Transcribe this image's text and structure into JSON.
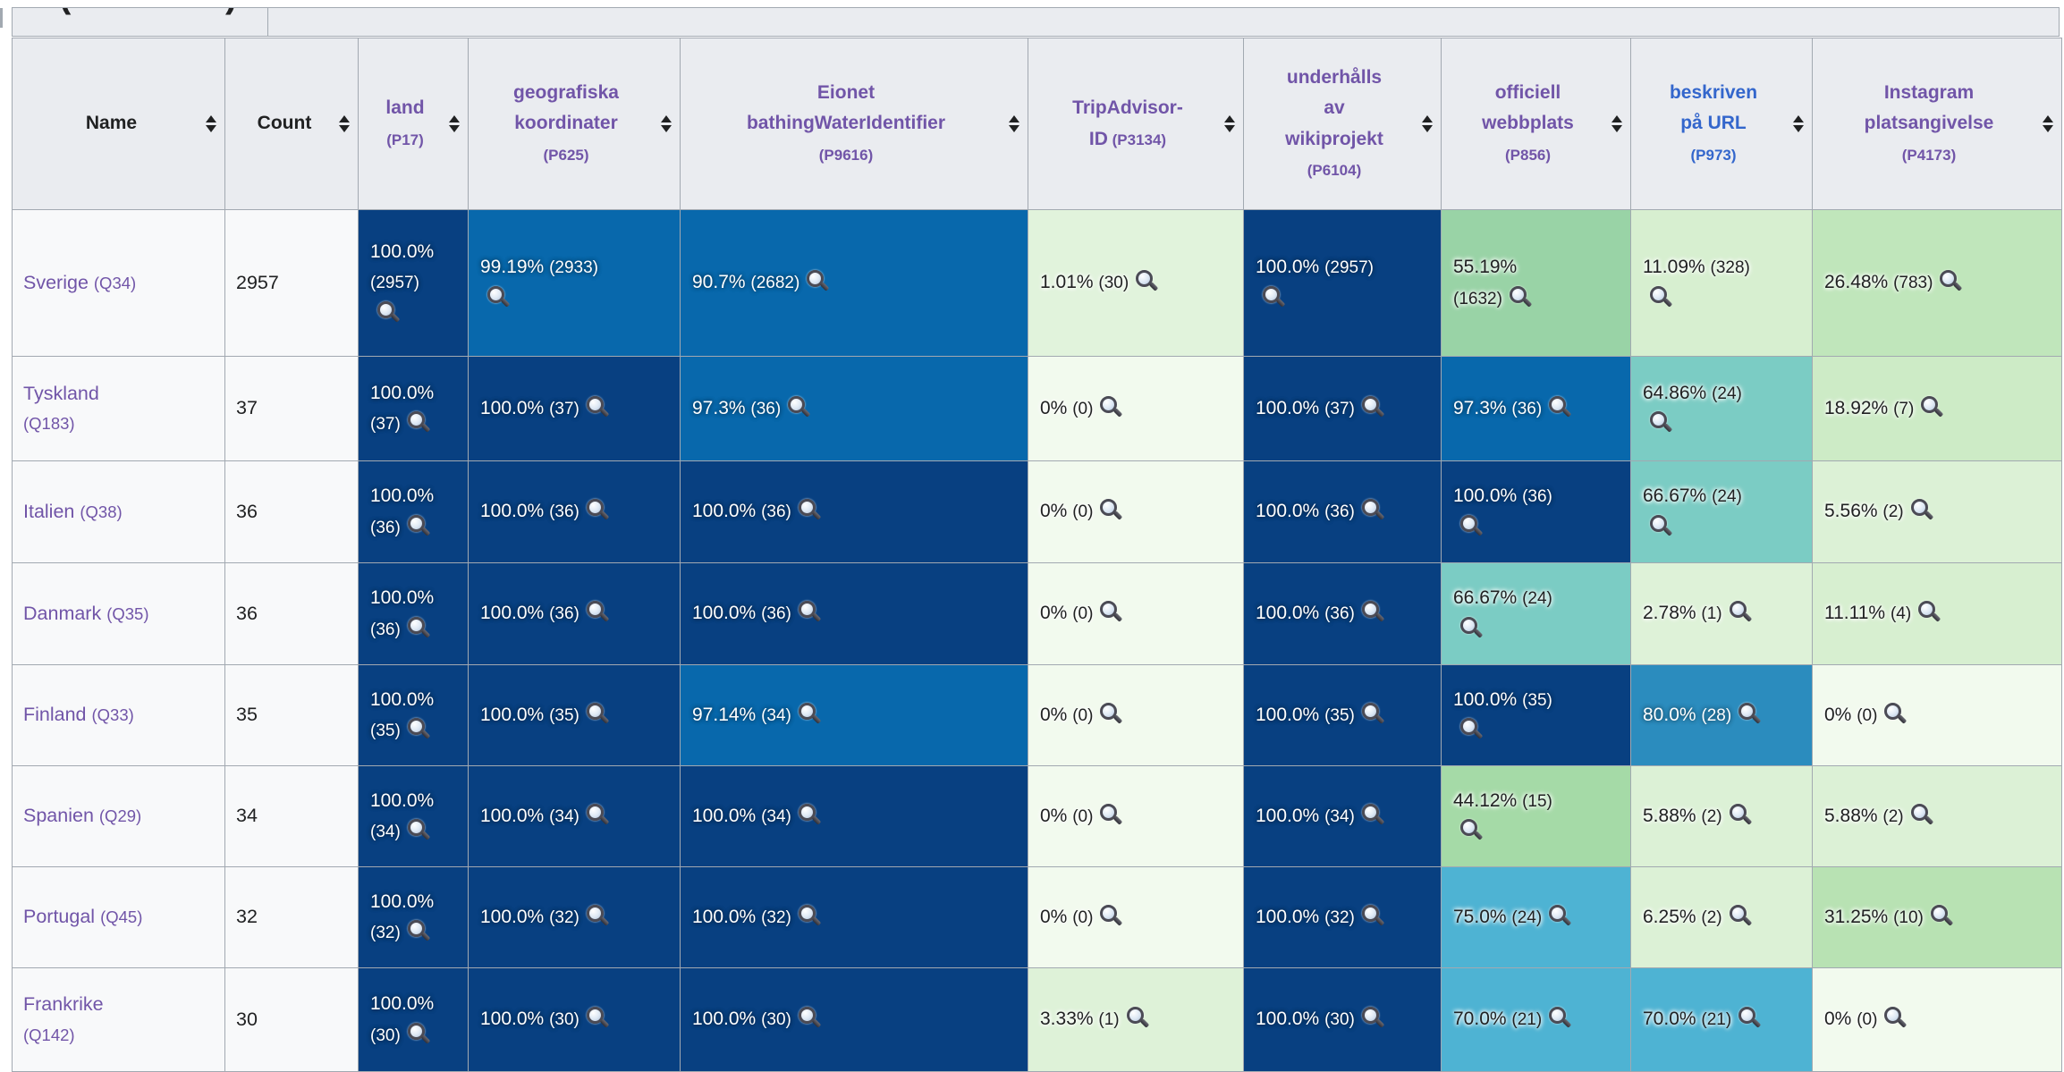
{
  "top_row": {
    "fragments": [
      "(",
      ")"
    ]
  },
  "table": {
    "headers": [
      {
        "lines": [
          "Name"
        ],
        "color": "#202122",
        "plain": true
      },
      {
        "lines": [
          "Count"
        ],
        "color": "#202122",
        "plain": true
      },
      {
        "lines": [
          "land",
          "(P17)"
        ],
        "color": "#7155a8"
      },
      {
        "lines": [
          "geografiska",
          "koordinater",
          "(P625)"
        ],
        "color": "#7155a8"
      },
      {
        "lines": [
          "Eionet",
          "bathingWaterIdentifier",
          "(P9616)"
        ],
        "color": "#7155a8"
      },
      {
        "lines": [
          "TripAdvisor-",
          "ID (P3134)"
        ],
        "color": "#7155a8"
      },
      {
        "lines": [
          "underhålls",
          "av",
          "wikiprojekt",
          "(P6104)"
        ],
        "color": "#7155a8"
      },
      {
        "lines": [
          "officiell",
          "webbplats",
          "(P856)"
        ],
        "color": "#7155a8"
      },
      {
        "lines": [
          "beskriven",
          "på URL",
          "(P973)"
        ],
        "color": "#3366cc"
      },
      {
        "lines": [
          "Instagram",
          "platsangivelse",
          "(P4173)"
        ],
        "color": "#7155a8"
      }
    ],
    "rows": [
      {
        "name": "Sverige",
        "qid": "(Q34)",
        "wrap": false,
        "count": "2957",
        "cells": [
          {
            "pct": "100.0%",
            "n": "2957",
            "bg": "#084081",
            "tx": "light",
            "l": "wni"
          },
          {
            "pct": "99.19%",
            "n": "2933",
            "bg": "#0868ac",
            "tx": "light",
            "l": "wi"
          },
          {
            "pct": "90.7%",
            "n": "2682",
            "bg": "#0868ac",
            "tx": "light",
            "l": "i"
          },
          {
            "pct": "1.01%",
            "n": "30",
            "bg": "#e1f3dc",
            "tx": "dark",
            "l": "i"
          },
          {
            "pct": "100.0%",
            "n": "2957",
            "bg": "#084081",
            "tx": "light",
            "l": "wi"
          },
          {
            "pct": "55.19%",
            "n": "1632",
            "bg": "#99d3a6",
            "tx": "dark",
            "l": "wn"
          },
          {
            "pct": "11.09%",
            "n": "328",
            "bg": "#d7efd0",
            "tx": "dark",
            "l": "wi"
          },
          {
            "pct": "26.48%",
            "n": "783",
            "bg": "#c0e6bb",
            "tx": "dark",
            "l": "i"
          }
        ]
      },
      {
        "name": "Tyskland",
        "qid": "(Q183)",
        "wrap": true,
        "count": "37",
        "cells": [
          {
            "pct": "100.0%",
            "n": "37",
            "bg": "#084081",
            "tx": "light",
            "l": "wn"
          },
          {
            "pct": "100.0%",
            "n": "37",
            "bg": "#084081",
            "tx": "light",
            "l": "i"
          },
          {
            "pct": "97.3%",
            "n": "36",
            "bg": "#0868ac",
            "tx": "light",
            "l": "i"
          },
          {
            "pct": "0%",
            "n": "0",
            "bg": "#f2faee",
            "tx": "dark",
            "l": "i"
          },
          {
            "pct": "100.0%",
            "n": "37",
            "bg": "#084081",
            "tx": "light",
            "l": "i"
          },
          {
            "pct": "97.3%",
            "n": "36",
            "bg": "#0868ac",
            "tx": "light",
            "l": "i"
          },
          {
            "pct": "64.86%",
            "n": "24",
            "bg": "#7bccc4",
            "tx": "dark",
            "l": "wi"
          },
          {
            "pct": "18.92%",
            "n": "7",
            "bg": "#cdebc6",
            "tx": "dark",
            "l": "i"
          }
        ]
      },
      {
        "name": "Italien",
        "qid": "(Q38)",
        "wrap": false,
        "count": "36",
        "cells": [
          {
            "pct": "100.0%",
            "n": "36",
            "bg": "#084081",
            "tx": "light",
            "l": "wn"
          },
          {
            "pct": "100.0%",
            "n": "36",
            "bg": "#084081",
            "tx": "light",
            "l": "i"
          },
          {
            "pct": "100.0%",
            "n": "36",
            "bg": "#084081",
            "tx": "light",
            "l": "i"
          },
          {
            "pct": "0%",
            "n": "0",
            "bg": "#f2faee",
            "tx": "dark",
            "l": "i"
          },
          {
            "pct": "100.0%",
            "n": "36",
            "bg": "#084081",
            "tx": "light",
            "l": "i"
          },
          {
            "pct": "100.0%",
            "n": "36",
            "bg": "#084081",
            "tx": "light",
            "l": "wi"
          },
          {
            "pct": "66.67%",
            "n": "24",
            "bg": "#7bccc4",
            "tx": "dark",
            "l": "wi"
          },
          {
            "pct": "5.56%",
            "n": "2",
            "bg": "#dcf1d6",
            "tx": "dark",
            "l": "i"
          }
        ]
      },
      {
        "name": "Danmark",
        "qid": "(Q35)",
        "wrap": false,
        "count": "36",
        "cells": [
          {
            "pct": "100.0%",
            "n": "36",
            "bg": "#084081",
            "tx": "light",
            "l": "wn"
          },
          {
            "pct": "100.0%",
            "n": "36",
            "bg": "#084081",
            "tx": "light",
            "l": "i"
          },
          {
            "pct": "100.0%",
            "n": "36",
            "bg": "#084081",
            "tx": "light",
            "l": "i"
          },
          {
            "pct": "0%",
            "n": "0",
            "bg": "#f2faee",
            "tx": "dark",
            "l": "i"
          },
          {
            "pct": "100.0%",
            "n": "36",
            "bg": "#084081",
            "tx": "light",
            "l": "i"
          },
          {
            "pct": "66.67%",
            "n": "24",
            "bg": "#7bccc4",
            "tx": "dark",
            "l": "wi"
          },
          {
            "pct": "2.78%",
            "n": "1",
            "bg": "#def2d8",
            "tx": "dark",
            "l": "i"
          },
          {
            "pct": "11.11%",
            "n": "4",
            "bg": "#d7efd0",
            "tx": "dark",
            "l": "i"
          }
        ]
      },
      {
        "name": "Finland",
        "qid": "(Q33)",
        "wrap": false,
        "count": "35",
        "cells": [
          {
            "pct": "100.0%",
            "n": "35",
            "bg": "#084081",
            "tx": "light",
            "l": "wn"
          },
          {
            "pct": "100.0%",
            "n": "35",
            "bg": "#084081",
            "tx": "light",
            "l": "i"
          },
          {
            "pct": "97.14%",
            "n": "34",
            "bg": "#0868ac",
            "tx": "light",
            "l": "i"
          },
          {
            "pct": "0%",
            "n": "0",
            "bg": "#f2faee",
            "tx": "dark",
            "l": "i"
          },
          {
            "pct": "100.0%",
            "n": "35",
            "bg": "#084081",
            "tx": "light",
            "l": "i"
          },
          {
            "pct": "100.0%",
            "n": "35",
            "bg": "#084081",
            "tx": "light",
            "l": "wi"
          },
          {
            "pct": "80.0%",
            "n": "28",
            "bg": "#2b8cbe",
            "tx": "light",
            "l": "i"
          },
          {
            "pct": "0%",
            "n": "0",
            "bg": "#f2faee",
            "tx": "dark",
            "l": "i"
          }
        ]
      },
      {
        "name": "Spanien",
        "qid": "(Q29)",
        "wrap": false,
        "count": "34",
        "cells": [
          {
            "pct": "100.0%",
            "n": "34",
            "bg": "#084081",
            "tx": "light",
            "l": "wn"
          },
          {
            "pct": "100.0%",
            "n": "34",
            "bg": "#084081",
            "tx": "light",
            "l": "i"
          },
          {
            "pct": "100.0%",
            "n": "34",
            "bg": "#084081",
            "tx": "light",
            "l": "i"
          },
          {
            "pct": "0%",
            "n": "0",
            "bg": "#f2faee",
            "tx": "dark",
            "l": "i"
          },
          {
            "pct": "100.0%",
            "n": "34",
            "bg": "#084081",
            "tx": "light",
            "l": "i"
          },
          {
            "pct": "44.12%",
            "n": "15",
            "bg": "#a5daa7",
            "tx": "dark",
            "l": "wi"
          },
          {
            "pct": "5.88%",
            "n": "2",
            "bg": "#dcf1d6",
            "tx": "dark",
            "l": "i"
          },
          {
            "pct": "5.88%",
            "n": "2",
            "bg": "#dcf1d6",
            "tx": "dark",
            "l": "i"
          }
        ]
      },
      {
        "name": "Portugal",
        "qid": "(Q45)",
        "wrap": false,
        "count": "32",
        "cells": [
          {
            "pct": "100.0%",
            "n": "32",
            "bg": "#084081",
            "tx": "light",
            "l": "wn"
          },
          {
            "pct": "100.0%",
            "n": "32",
            "bg": "#084081",
            "tx": "light",
            "l": "i"
          },
          {
            "pct": "100.0%",
            "n": "32",
            "bg": "#084081",
            "tx": "light",
            "l": "i"
          },
          {
            "pct": "0%",
            "n": "0",
            "bg": "#f2faee",
            "tx": "dark",
            "l": "i"
          },
          {
            "pct": "100.0%",
            "n": "32",
            "bg": "#084081",
            "tx": "light",
            "l": "i"
          },
          {
            "pct": "75.0%",
            "n": "24",
            "bg": "#4eb3d3",
            "tx": "dark",
            "l": "i"
          },
          {
            "pct": "6.25%",
            "n": "2",
            "bg": "#dcf1d6",
            "tx": "dark",
            "l": "i"
          },
          {
            "pct": "31.25%",
            "n": "10",
            "bg": "#b8e2b3",
            "tx": "dark",
            "l": "i"
          }
        ]
      },
      {
        "name": "Frankrike",
        "qid": "(Q142)",
        "wrap": true,
        "count": "30",
        "cells": [
          {
            "pct": "100.0%",
            "n": "30",
            "bg": "#084081",
            "tx": "light",
            "l": "wn"
          },
          {
            "pct": "100.0%",
            "n": "30",
            "bg": "#084081",
            "tx": "light",
            "l": "i"
          },
          {
            "pct": "100.0%",
            "n": "30",
            "bg": "#084081",
            "tx": "light",
            "l": "i"
          },
          {
            "pct": "3.33%",
            "n": "1",
            "bg": "#def2d8",
            "tx": "dark",
            "l": "i"
          },
          {
            "pct": "100.0%",
            "n": "30",
            "bg": "#084081",
            "tx": "light",
            "l": "i"
          },
          {
            "pct": "70.0%",
            "n": "21",
            "bg": "#4eb3d3",
            "tx": "dark",
            "l": "i"
          },
          {
            "pct": "70.0%",
            "n": "21",
            "bg": "#4eb3d3",
            "tx": "dark",
            "l": "i"
          },
          {
            "pct": "0%",
            "n": "0",
            "bg": "#f2faee",
            "tx": "dark",
            "l": "i"
          }
        ]
      }
    ],
    "link_colors": {
      "item": "#7155a8",
      "unvisited": "#3366cc"
    }
  }
}
